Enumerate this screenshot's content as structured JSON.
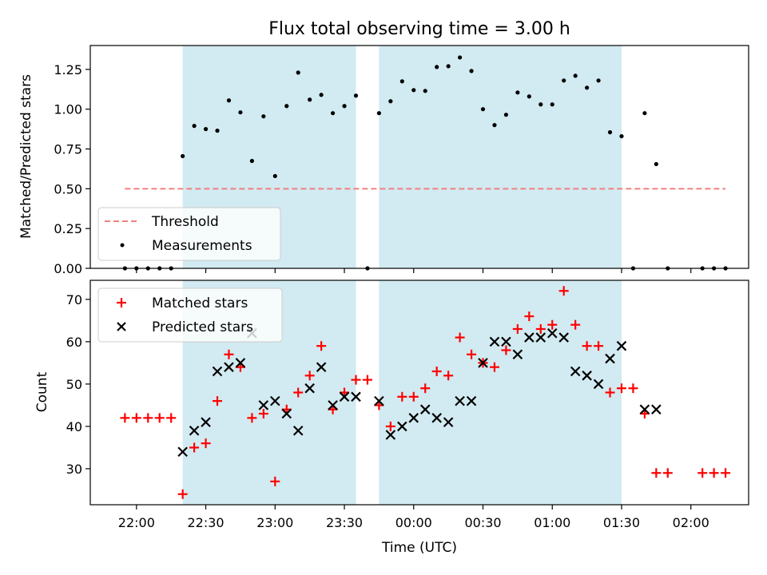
{
  "chart_data": [
    {
      "type": "scatter",
      "title": "Flux total observing time = 3.00 h",
      "ylabel": "Matched/Predicted stars",
      "xlabel": "",
      "ylim": [
        0,
        1.4
      ],
      "yticks": [
        "0.00",
        "0.25",
        "0.50",
        "0.75",
        "1.00",
        "1.25"
      ],
      "legend": {
        "placement": "bottom-left",
        "entries": [
          "Threshold",
          "Measurements"
        ]
      },
      "threshold": {
        "name": "Threshold",
        "value": 0.5,
        "x_start": "21:55",
        "x_end": "02:15",
        "color": "#f08080",
        "style": "dashed"
      },
      "shaded_intervals": [
        {
          "start": "22:20",
          "end": "23:35",
          "color": "#add8e6"
        },
        {
          "start": "23:45",
          "end": "01:30",
          "color": "#add8e6"
        }
      ],
      "series": [
        {
          "name": "Measurements",
          "color": "#000000",
          "marker": "dot",
          "x": [
            "21:55",
            "22:00",
            "22:05",
            "22:10",
            "22:15",
            "22:20",
            "22:25",
            "22:30",
            "22:35",
            "22:40",
            "22:45",
            "22:50",
            "22:55",
            "23:00",
            "23:05",
            "23:10",
            "23:15",
            "23:20",
            "23:25",
            "23:30",
            "23:35",
            "23:40",
            "23:45",
            "23:50",
            "23:55",
            "00:00",
            "00:05",
            "00:10",
            "00:15",
            "00:20",
            "00:25",
            "00:30",
            "00:35",
            "00:40",
            "00:45",
            "00:50",
            "00:55",
            "01:00",
            "01:05",
            "01:10",
            "01:15",
            "01:20",
            "01:25",
            "01:30",
            "01:35",
            "01:40",
            "01:45",
            "01:50",
            "02:05",
            "02:10",
            "02:15"
          ],
          "y": [
            0,
            0,
            0,
            0,
            0,
            0.705,
            0.895,
            0.875,
            0.865,
            1.055,
            0.98,
            0.675,
            0.955,
            0.58,
            1.02,
            1.23,
            1.06,
            1.09,
            0.975,
            1.02,
            1.085,
            0,
            0.975,
            1.05,
            1.175,
            1.12,
            1.115,
            1.265,
            1.27,
            1.325,
            1.24,
            1.0,
            0.9,
            0.965,
            1.105,
            1.08,
            1.03,
            1.03,
            1.18,
            1.21,
            1.135,
            1.18,
            0.855,
            0.83,
            0,
            0.975,
            0.655,
            0,
            0,
            0,
            0
          ]
        }
      ]
    },
    {
      "type": "scatter",
      "title": "",
      "ylabel": "Count",
      "xlabel": "Time (UTC)",
      "ylim": [
        21.5,
        74.5
      ],
      "yticks": [
        "30",
        "40",
        "50",
        "60",
        "70"
      ],
      "xticks": [
        "22:00",
        "22:30",
        "23:00",
        "23:30",
        "00:00",
        "00:30",
        "01:00",
        "01:30",
        "02:00"
      ],
      "legend": {
        "placement": "top-left",
        "entries": [
          "Matched stars",
          "Predicted stars"
        ]
      },
      "shaded_intervals": [
        {
          "start": "22:20",
          "end": "23:35",
          "color": "#add8e6"
        },
        {
          "start": "23:45",
          "end": "01:30",
          "color": "#add8e6"
        }
      ],
      "series": [
        {
          "name": "Matched stars",
          "color": "#ff0000",
          "marker": "plus",
          "x": [
            "21:55",
            "22:00",
            "22:05",
            "22:10",
            "22:15",
            "22:20",
            "22:25",
            "22:30",
            "22:35",
            "22:40",
            "22:45",
            "22:50",
            "22:55",
            "23:00",
            "23:05",
            "23:10",
            "23:15",
            "23:20",
            "23:25",
            "23:30",
            "23:35",
            "23:40",
            "23:45",
            "23:50",
            "23:55",
            "00:00",
            "00:05",
            "00:10",
            "00:15",
            "00:20",
            "00:25",
            "00:30",
            "00:35",
            "00:40",
            "00:45",
            "00:50",
            "00:55",
            "01:00",
            "01:05",
            "01:10",
            "01:15",
            "01:20",
            "01:25",
            "01:30",
            "01:35",
            "01:40",
            "01:45",
            "01:50",
            "02:05",
            "02:10",
            "02:15"
          ],
          "y": [
            42,
            42,
            42,
            42,
            42,
            24,
            35,
            36,
            46,
            57,
            54,
            42,
            43,
            27,
            44,
            48,
            52,
            59,
            44,
            48,
            51,
            51,
            45,
            40,
            47,
            47,
            49,
            53,
            52,
            61,
            57,
            55,
            54,
            58,
            63,
            66,
            63,
            64,
            72,
            64,
            59,
            59,
            48,
            49,
            49,
            43,
            29,
            29,
            29,
            29,
            29
          ]
        },
        {
          "name": "Predicted stars",
          "color": "#000000",
          "marker": "x",
          "x": [
            "22:20",
            "22:25",
            "22:30",
            "22:35",
            "22:40",
            "22:45",
            "22:50",
            "22:55",
            "23:00",
            "23:05",
            "23:10",
            "23:15",
            "23:20",
            "23:25",
            "23:30",
            "23:35",
            "23:45",
            "23:50",
            "23:55",
            "00:00",
            "00:05",
            "00:10",
            "00:15",
            "00:20",
            "00:25",
            "00:30",
            "00:35",
            "00:40",
            "00:45",
            "00:50",
            "00:55",
            "01:00",
            "01:05",
            "01:10",
            "01:15",
            "01:20",
            "01:25",
            "01:30",
            "01:40",
            "01:45"
          ],
          "y": [
            34,
            39,
            41,
            53,
            54,
            55,
            62,
            45,
            46,
            43,
            39,
            49,
            54,
            45,
            47,
            47,
            46,
            38,
            40,
            42,
            44,
            42,
            41,
            46,
            46,
            55,
            60,
            60,
            57,
            61,
            61,
            62,
            61,
            53,
            52,
            50,
            56,
            59,
            44,
            44
          ]
        }
      ]
    }
  ]
}
